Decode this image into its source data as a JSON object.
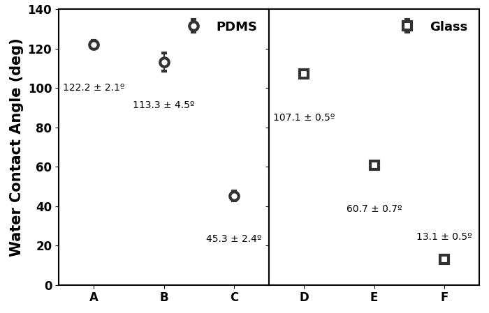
{
  "chart_data": [
    {
      "type": "scatter",
      "categories": [
        "A",
        "B",
        "C"
      ],
      "ylabel": "Water Contact Angle (deg)",
      "ylim": [
        0,
        140
      ],
      "yticks": [
        0,
        20,
        40,
        60,
        80,
        100,
        120,
        140
      ],
      "legend": "upper right",
      "data_labels": true,
      "series": [
        {
          "name": "PDMS",
          "color": "#333333",
          "marker": "circle",
          "values": [
            122.2,
            113.3,
            45.3
          ],
          "errors": [
            2.1,
            4.5,
            2.4
          ],
          "value_labels": [
            "122.2 ± 2.1º",
            "113.3 ± 4.5º",
            "45.3 ± 2.4º"
          ]
        }
      ]
    },
    {
      "type": "scatter",
      "categories": [
        "D",
        "E",
        "F"
      ],
      "ylim": [
        0,
        140
      ],
      "yticks": [
        0,
        20,
        40,
        60,
        80,
        100,
        120,
        140
      ],
      "tick_labels": "x",
      "legend": "upper right",
      "data_labels": true,
      "series": [
        {
          "name": "Glass",
          "color": "#333333",
          "marker": "square",
          "values": [
            107.1,
            60.7,
            13.1
          ],
          "errors": [
            0.5,
            0.7,
            0.5
          ],
          "value_labels": [
            "107.1 ± 0.5º",
            "60.7 ± 0.7º",
            "13.1 ± 0.5º"
          ]
        }
      ]
    }
  ]
}
